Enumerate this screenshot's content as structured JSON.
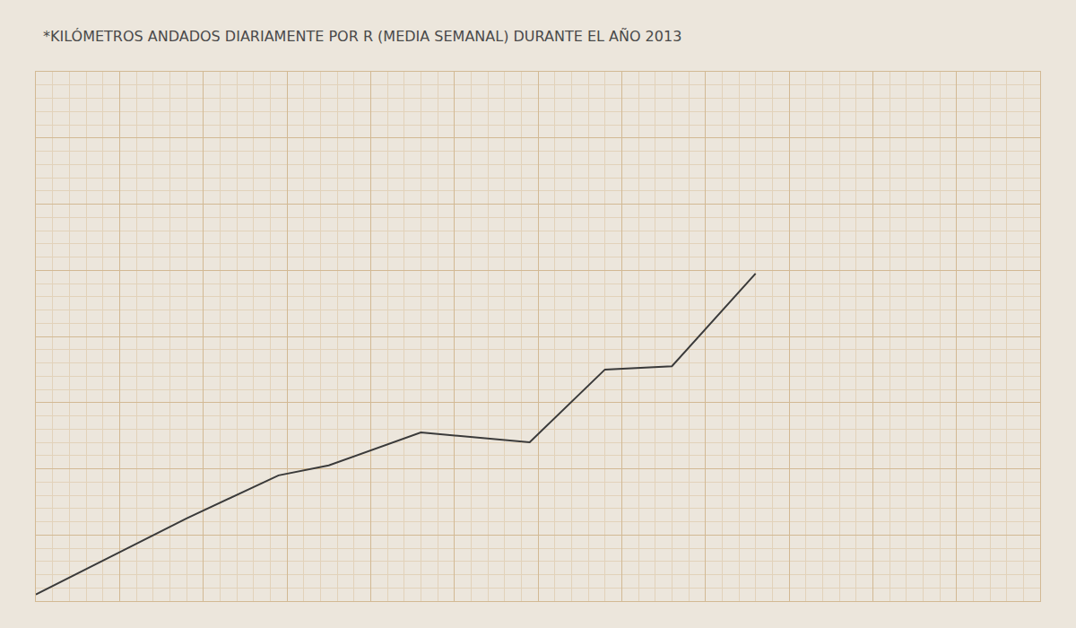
{
  "chart_data": {
    "type": "line",
    "title": "*KILÓMETROS ANDADOS DIARIAMENTE POR R (MEDIA SEMANAL) DURANTE EL AÑO 2013",
    "x": [
      0,
      9,
      14.5,
      17.5,
      23,
      29.5,
      34,
      38,
      43
    ],
    "values": [
      0.2,
      2.5,
      3.8,
      4.1,
      5.1,
      4.8,
      7.0,
      7.1,
      9.9
    ],
    "color": "#3a3a3a",
    "xlim": [
      0,
      60
    ],
    "xticks": [
      0,
      5,
      10,
      15,
      20,
      25,
      30,
      35,
      40,
      45,
      50,
      55,
      60
    ],
    "ylim": [
      0,
      16
    ],
    "yticks": [
      0,
      2,
      4,
      6,
      8,
      10,
      12,
      14,
      16
    ],
    "grid": true,
    "tick_labels": false
  }
}
